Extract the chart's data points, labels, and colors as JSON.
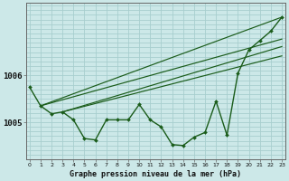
{
  "bg_color": "#cce8e8",
  "grid_color": "#a8cece",
  "line_color": "#1a5c1a",
  "marker_color": "#1a5c1a",
  "xlabel": "Graphe pression niveau de la mer (hPa)",
  "ylabel_ticks": [
    1005,
    1006
  ],
  "x_data": [
    0,
    1,
    2,
    3,
    4,
    5,
    6,
    7,
    8,
    9,
    10,
    11,
    12,
    13,
    14,
    15,
    16,
    17,
    18,
    19,
    20,
    21,
    22,
    23
  ],
  "main_y": [
    1005.75,
    1005.35,
    1005.18,
    1005.22,
    1005.05,
    1004.65,
    1004.62,
    1005.05,
    1005.05,
    1005.05,
    1005.38,
    1005.05,
    1004.9,
    1004.52,
    1004.5,
    1004.68,
    1004.78,
    1005.45,
    1004.72,
    1006.05,
    1006.55,
    1006.75,
    1006.95,
    1007.25
  ],
  "trend_lines": [
    {
      "x0": 1,
      "y0": 1005.35,
      "x1": 23,
      "y1": 1007.25
    },
    {
      "x0": 1,
      "y0": 1005.35,
      "x1": 23,
      "y1": 1006.78
    },
    {
      "x0": 3,
      "y0": 1005.22,
      "x1": 23,
      "y1": 1006.62
    },
    {
      "x0": 3,
      "y0": 1005.22,
      "x1": 23,
      "y1": 1006.42
    }
  ],
  "xlim": [
    -0.3,
    23.3
  ],
  "ylim": [
    1004.2,
    1007.55
  ],
  "figsize": [
    3.2,
    2.0
  ],
  "dpi": 100
}
